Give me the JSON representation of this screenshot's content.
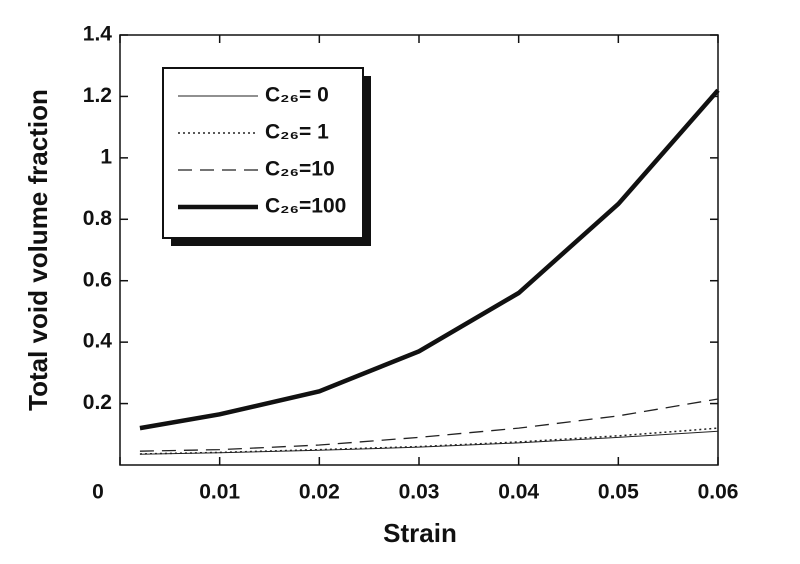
{
  "chart_data": {
    "type": "line",
    "x_label": "Strain",
    "y_label": "Total void volume fraction",
    "xlim": [
      0,
      0.06
    ],
    "ylim": [
      0,
      1.4
    ],
    "xticks": [
      0,
      0.01,
      0.02,
      0.03,
      0.04,
      0.05,
      0.06
    ],
    "yticks": [
      0.2,
      0.4,
      0.6,
      0.8,
      1,
      1.2,
      1.4
    ],
    "legend": "upper left",
    "x": [
      0.002,
      0.01,
      0.02,
      0.03,
      0.04,
      0.05,
      0.06
    ],
    "series": [
      {
        "name": "C₂₆= 0",
        "color": "#222",
        "width": 1,
        "dash": "none",
        "values": [
          0.035,
          0.04,
          0.048,
          0.058,
          0.072,
          0.09,
          0.11
        ]
      },
      {
        "name": "C₂₆= 1",
        "color": "#222",
        "width": 1.5,
        "dash": "2 3",
        "values": [
          0.036,
          0.041,
          0.05,
          0.06,
          0.075,
          0.095,
          0.12
        ]
      },
      {
        "name": "C₂₆=10",
        "color": "#222",
        "width": 1.3,
        "dash": "14 8",
        "values": [
          0.045,
          0.05,
          0.065,
          0.09,
          0.12,
          0.16,
          0.215
        ]
      },
      {
        "name": "C₂₆=100",
        "color": "#111",
        "width": 4.5,
        "dash": "none",
        "values": [
          0.12,
          0.165,
          0.24,
          0.37,
          0.56,
          0.85,
          1.22
        ]
      }
    ]
  }
}
